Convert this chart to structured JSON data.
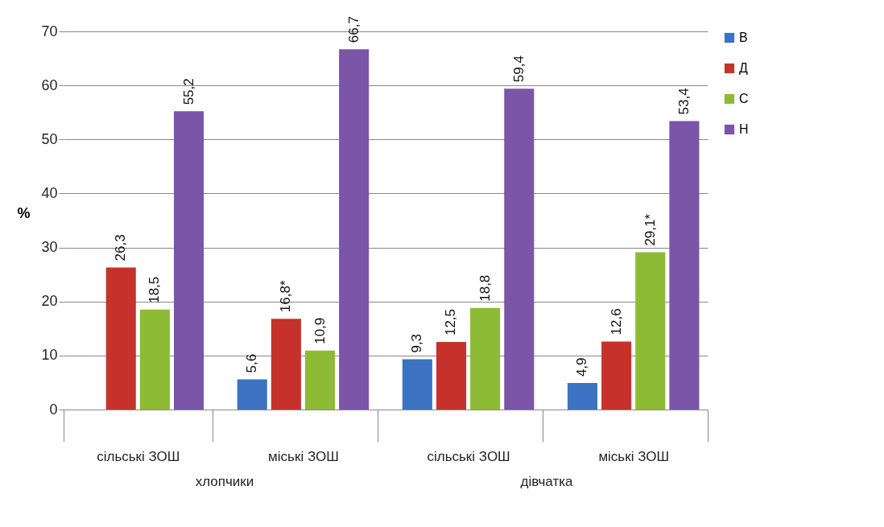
{
  "chart_data": {
    "type": "bar",
    "ylabel": "%",
    "categories": [
      "сільські ЗОШ",
      "міські ЗОШ",
      "сільські ЗОШ",
      "міські ЗОШ"
    ],
    "series": [
      {
        "name": "В",
        "color": "#3b73c2",
        "values": [
          null,
          5.6,
          9.3,
          4.9
        ],
        "value_labels": [
          null,
          "5,6",
          "9,3",
          "4,9"
        ]
      },
      {
        "name": "Д",
        "color": "#c6322b",
        "values": [
          26.3,
          16.8,
          12.5,
          12.6
        ],
        "value_labels": [
          "26,3",
          "16,8*",
          "12,5",
          "12,6"
        ]
      },
      {
        "name": "С",
        "color": "#8dbb35",
        "values": [
          18.5,
          10.9,
          18.8,
          29.1
        ],
        "value_labels": [
          "18,5",
          "10,9",
          "18,8",
          "29,1*"
        ]
      },
      {
        "name": "Н",
        "color": "#7b55a8",
        "values": [
          55.2,
          66.7,
          59.4,
          53.4
        ],
        "value_labels": [
          "55,2",
          "66,7",
          "59,4",
          "53,4"
        ]
      }
    ],
    "annotations": [
      "хлопчики",
      "дівчатка"
    ],
    "ylim": [
      0,
      70
    ],
    "yticks": [
      0,
      10,
      20,
      30,
      40,
      50,
      60,
      70
    ],
    "grid": "y",
    "legend": "right"
  }
}
